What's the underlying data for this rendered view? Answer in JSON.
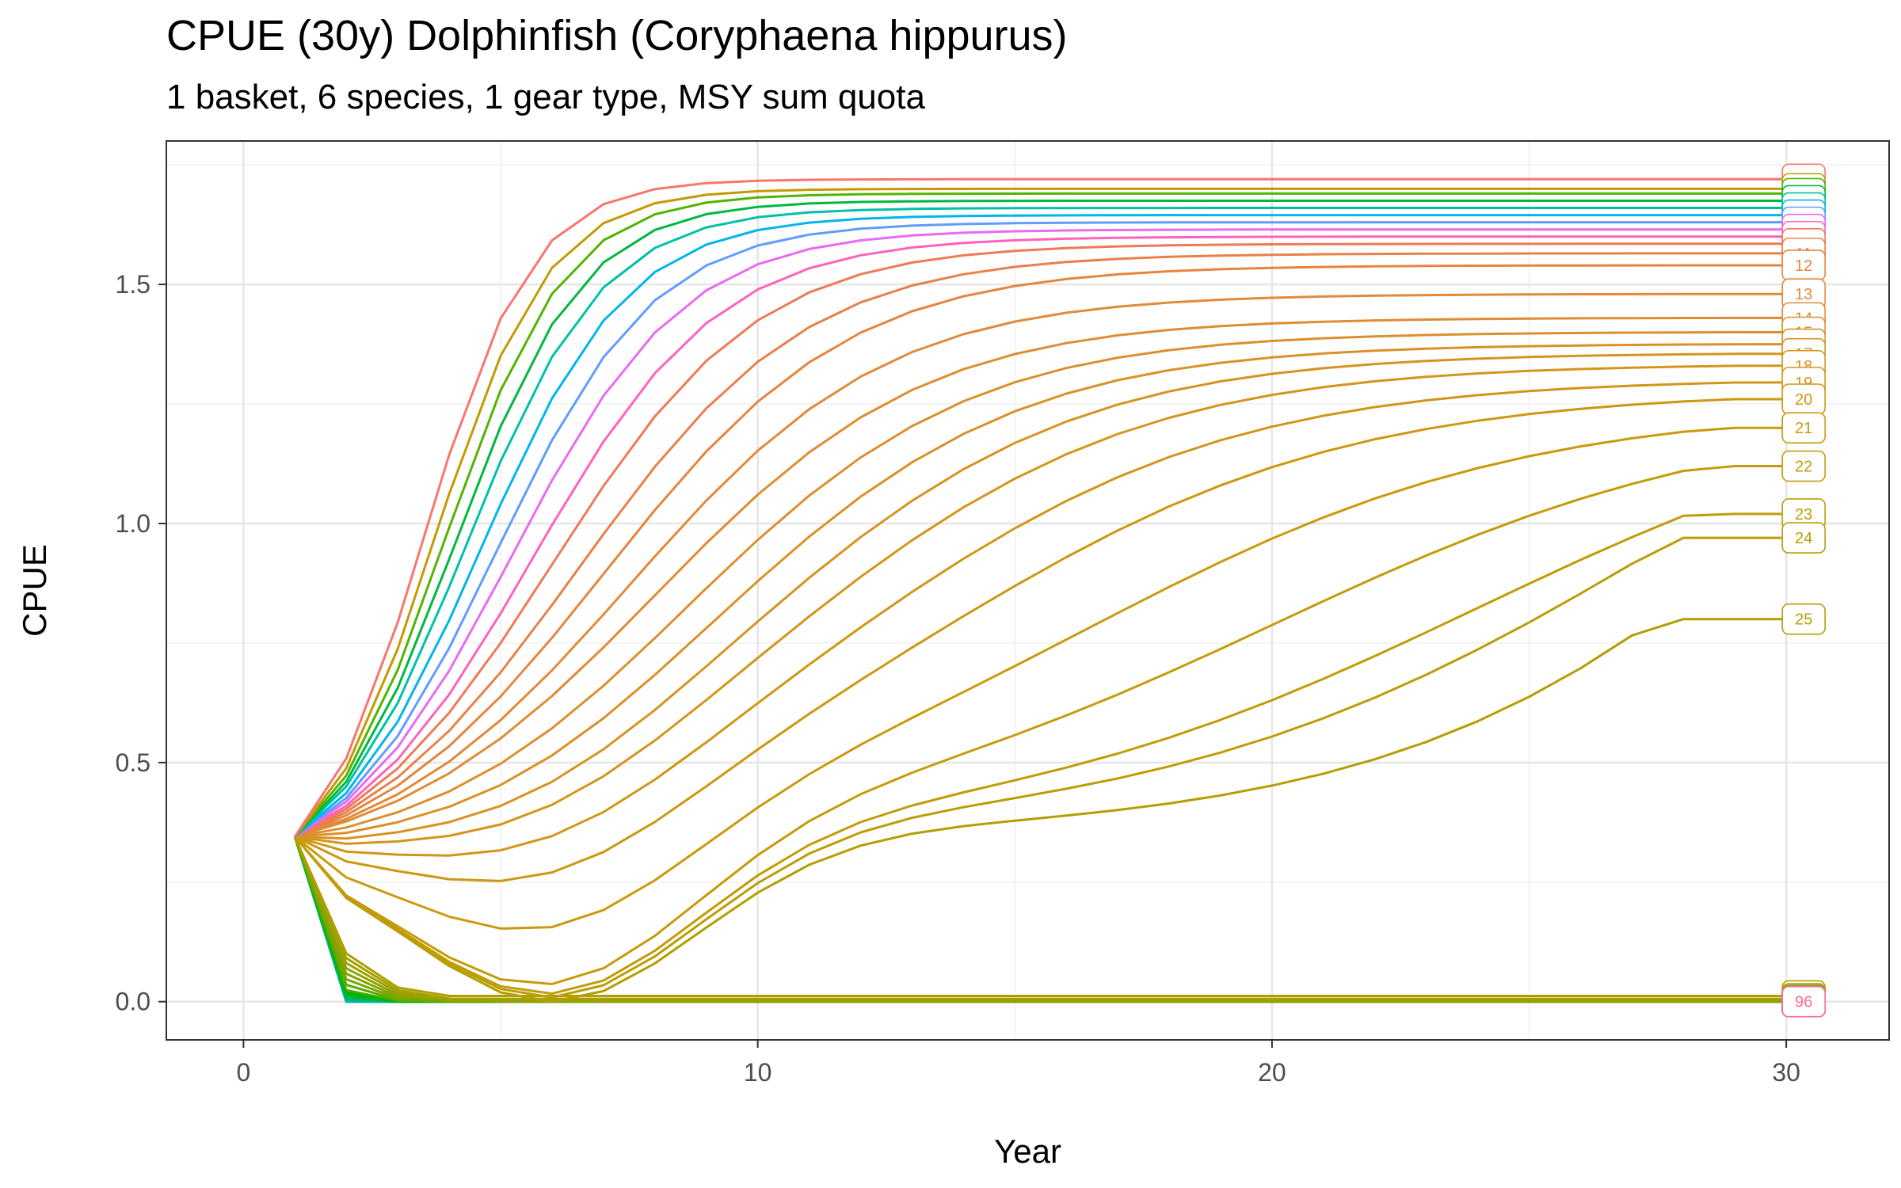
{
  "chart_data": {
    "type": "line",
    "title": "CPUE (30y) Dolphinfish (Coryphaena hippurus)",
    "subtitle": "1 basket, 6 species, 1 gear type, MSY sum quota",
    "xlabel": "Year",
    "ylabel": "CPUE",
    "xlim": [
      -1.5,
      32
    ],
    "ylim": [
      -0.08,
      1.8
    ],
    "xticks": [
      "0",
      "10",
      "20",
      "30"
    ],
    "yticks": [
      "0.0",
      "0.5",
      "1.0",
      "1.5"
    ],
    "xtick_values": [
      0,
      10,
      20,
      30
    ],
    "ytick_values": [
      0,
      0.5,
      1.0,
      1.5
    ],
    "grid": true,
    "legend": "none (end-of-line labels)",
    "start": {
      "year": 1,
      "cpue": 0.345
    },
    "series": [
      {
        "label": "",
        "color": "#f8766d",
        "mode": "rise",
        "final": 1.72,
        "k": 0.95,
        "t0": 3.5
      },
      {
        "label": "",
        "color": "#c49a00",
        "mode": "rise",
        "final": 1.7,
        "k": 0.9,
        "t0": 3.7
      },
      {
        "label": "",
        "color": "#53b400",
        "mode": "rise",
        "final": 1.69,
        "k": 0.85,
        "t0": 3.9
      },
      {
        "label": "",
        "color": "#00b83f",
        "mode": "rise",
        "final": 1.675,
        "k": 0.8,
        "t0": 4.1
      },
      {
        "label": "",
        "color": "#00c1a8",
        "mode": "rise",
        "final": 1.66,
        "k": 0.75,
        "t0": 4.3
      },
      {
        "label": "",
        "color": "#00b6eb",
        "mode": "rise",
        "final": 1.645,
        "k": 0.7,
        "t0": 4.6
      },
      {
        "label": "",
        "color": "#619cff",
        "mode": "rise",
        "final": 1.63,
        "k": 0.65,
        "t0": 4.9
      },
      {
        "label": "",
        "color": "#e76bf3",
        "mode": "rise",
        "final": 1.615,
        "k": 0.6,
        "t0": 5.2
      },
      {
        "label": "",
        "color": "#ff62bc",
        "mode": "rise",
        "final": 1.6,
        "k": 0.55,
        "t0": 5.6
      },
      {
        "label": "",
        "color": "#ee7a56",
        "mode": "rise",
        "final": 1.585,
        "k": 0.5,
        "t0": 6.0
      },
      {
        "label": "11",
        "color": "#e8804a",
        "mode": "rise",
        "final": 1.565,
        "k": 0.45,
        "t0": 6.5
      },
      {
        "label": "12",
        "color": "#e5853e",
        "mode": "rise",
        "final": 1.54,
        "k": 0.42,
        "t0": 7.0
      },
      {
        "label": "13",
        "color": "#e2893a",
        "mode": "rise",
        "final": 1.48,
        "k": 0.4,
        "t0": 7.5
      },
      {
        "label": "14",
        "color": "#df8c34",
        "mode": "rise",
        "final": 1.43,
        "k": 0.38,
        "t0": 8.0
      },
      {
        "label": "15",
        "color": "#dc8f2e",
        "mode": "rise",
        "final": 1.4,
        "k": 0.36,
        "t0": 8.7
      },
      {
        "label": "16",
        "color": "#d99128",
        "mode": "rise",
        "final": 1.375,
        "k": 0.34,
        "t0": 9.4
      },
      {
        "label": "17",
        "color": "#d69322",
        "mode": "rise",
        "final": 1.355,
        "k": 0.32,
        "t0": 10.2
      },
      {
        "label": "18",
        "color": "#d4951c",
        "mode": "rise",
        "final": 1.33,
        "k": 0.3,
        "t0": 11.0
      },
      {
        "label": "19",
        "color": "#d09716",
        "mode": "rise",
        "final": 1.295,
        "k": 0.28,
        "t0": 12.2
      },
      {
        "label": "20",
        "color": "#cc9810",
        "mode": "rise",
        "final": 1.26,
        "k": 0.26,
        "t0": 13.8
      },
      {
        "label": "21",
        "color": "#c99a0c",
        "mode": "rise",
        "final": 1.2,
        "k": 0.24,
        "t0": 16.5
      },
      {
        "label": "22",
        "color": "#c59b08",
        "mode": "rise",
        "final": 1.12,
        "k": 0.22,
        "t0": 20.0
      },
      {
        "label": "23",
        "color": "#c19c06",
        "mode": "rise",
        "final": 1.02,
        "k": 0.21,
        "t0": 24.0
      },
      {
        "label": "24",
        "color": "#bb9d04",
        "mode": "rise",
        "final": 0.97,
        "k": 0.2,
        "t0": 28.0
      },
      {
        "label": "25",
        "color": "#b49e02",
        "mode": "rise",
        "final": 0.8,
        "k": 0.22,
        "t0": 33.0
      },
      {
        "label": "",
        "color": "#ad9f00",
        "mode": "decline",
        "year0_drop": 2.6,
        "tail": 0.012
      },
      {
        "label": "",
        "color": "#a4a000",
        "mode": "decline",
        "year0_drop": 2.4,
        "tail": 0.006
      },
      {
        "label": "",
        "color": "#9aa100",
        "mode": "decline",
        "year0_drop": 2.2,
        "tail": 0.003
      },
      {
        "label": "",
        "color": "#8fa200",
        "mode": "decline",
        "year0_drop": 2.0,
        "tail": 0.0
      },
      {
        "label": "",
        "color": "#82a300",
        "mode": "decline",
        "year0_drop": 1.8,
        "tail": 0.0
      },
      {
        "label": "",
        "color": "#72a600",
        "mode": "decline",
        "year0_drop": 1.6,
        "tail": 0.0
      },
      {
        "label": "",
        "color": "#5ea900",
        "mode": "decline",
        "year0_drop": 1.4,
        "tail": 0.0
      },
      {
        "label": "",
        "color": "#40ad00",
        "mode": "decline",
        "year0_drop": 1.2,
        "tail": 0.0
      },
      {
        "label": "",
        "color": "#00b000",
        "mode": "decline",
        "year0_drop": 1.1,
        "tail": 0.0
      },
      {
        "label": "",
        "color": "#00b31e",
        "mode": "decline",
        "year0_drop": 1.0,
        "tail": 0.0
      },
      {
        "label": "",
        "color": "#00b546",
        "mode": "decline",
        "year0_drop": 0.9,
        "tail": 0.0
      },
      {
        "label": "",
        "color": "#00b764",
        "mode": "decline",
        "year0_drop": 0.8,
        "tail": 0.0
      },
      {
        "label": "",
        "color": "#00b97e",
        "mode": "decline",
        "year0_drop": 0.7,
        "tail": 0.0
      },
      {
        "label": "",
        "color": "#00ba96",
        "mode": "decline",
        "year0_drop": 0.6,
        "tail": 0.0
      },
      {
        "label": "",
        "color": "#00bbad",
        "mode": "decline",
        "year0_drop": 0.5,
        "tail": 0.0
      },
      {
        "label": "",
        "color": "#00bcc2",
        "mode": "decline",
        "year0_drop": 0.4,
        "tail": 0.0
      },
      {
        "label": "",
        "color": "#00bcd6",
        "mode": "decline",
        "year0_drop": 0.35,
        "tail": 0.0
      },
      {
        "label": "",
        "color": "#00bbe8",
        "mode": "decline",
        "year0_drop": 0.3,
        "tail": 0.0
      },
      {
        "label": "",
        "color": "#00b8f8",
        "mode": "decline",
        "year0_drop": 0.25,
        "tail": 0.0
      },
      {
        "label": "",
        "color": "#f564e3",
        "mode": "decline",
        "year0_drop": 0.2,
        "tail": 0.0
      },
      {
        "label": "96",
        "color": "#ff6c91",
        "mode": "decline",
        "year0_drop": 0.1,
        "tail": 0.0
      }
    ]
  }
}
